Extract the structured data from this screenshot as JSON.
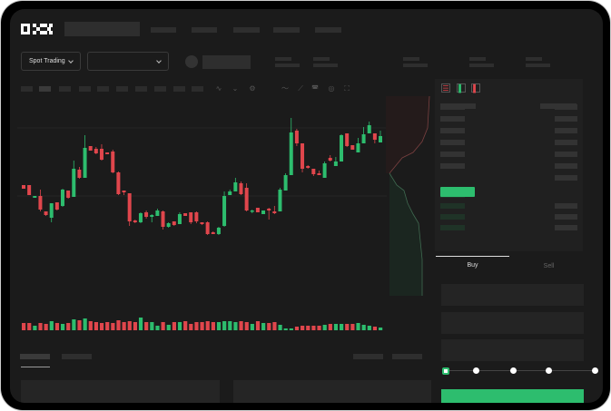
{
  "brand": {
    "logo": "OKX"
  },
  "toolbar": {
    "market_type": "Spot Trading",
    "pair": ""
  },
  "trade_form": {
    "tabs": [
      {
        "label": "Buy",
        "active": true
      },
      {
        "label": "Sell",
        "active": false
      }
    ],
    "leverage_steps": 5,
    "selected_step": 0
  },
  "colors": {
    "up": "#2dbd6e",
    "down": "#e0464c",
    "background": "#1b1b1b"
  },
  "chart_data": {
    "type": "candlestick",
    "title": "",
    "xlabel": "",
    "ylabel": "",
    "grid": true,
    "candles_ohlc": [
      [
        97,
        97,
        93,
        93
      ],
      [
        97,
        97,
        86,
        86
      ],
      [
        83,
        85,
        83,
        85
      ],
      [
        85,
        92,
        68,
        70
      ],
      [
        68,
        68,
        63,
        64
      ],
      [
        61,
        77,
        56,
        77
      ],
      [
        78,
        78,
        69,
        70
      ],
      [
        74,
        93,
        73,
        92
      ],
      [
        91,
        91,
        82,
        83
      ],
      [
        84,
        124,
        84,
        115
      ],
      [
        114,
        117,
        104,
        105
      ],
      [
        105,
        152,
        105,
        138
      ],
      [
        140,
        140,
        135,
        135
      ],
      [
        137,
        139,
        131,
        132
      ],
      [
        137,
        142,
        124,
        125
      ],
      [
        133,
        133,
        131,
        131
      ],
      [
        134,
        136,
        110,
        111
      ],
      [
        111,
        112,
        86,
        87
      ],
      [
        91,
        91,
        86,
        89
      ],
      [
        88,
        88,
        52,
        57
      ],
      [
        58,
        59,
        55,
        56
      ],
      [
        56,
        67,
        55,
        66
      ],
      [
        67,
        69,
        60,
        62
      ],
      [
        62,
        65,
        56,
        64
      ],
      [
        63,
        71,
        63,
        69
      ],
      [
        68,
        69,
        48,
        51
      ],
      [
        51,
        56,
        50,
        55
      ],
      [
        57,
        57,
        52,
        53
      ],
      [
        54,
        67,
        54,
        65
      ],
      [
        66,
        66,
        63,
        63
      ],
      [
        67,
        67,
        54,
        56
      ],
      [
        67,
        68,
        55,
        57
      ],
      [
        56,
        56,
        53,
        54
      ],
      [
        56,
        57,
        42,
        43
      ],
      [
        45,
        46,
        43,
        43
      ],
      [
        43,
        51,
        42,
        50
      ],
      [
        52,
        90,
        51,
        85
      ],
      [
        86,
        92,
        86,
        90
      ],
      [
        90,
        105,
        90,
        100
      ],
      [
        99,
        101,
        86,
        87
      ],
      [
        94,
        99,
        68,
        69
      ],
      [
        68,
        70,
        66,
        69
      ],
      [
        72,
        72,
        67,
        67
      ],
      [
        65,
        69,
        65,
        69
      ],
      [
        71,
        72,
        59,
        69
      ],
      [
        68,
        74,
        65,
        66
      ],
      [
        68,
        94,
        68,
        92
      ],
      [
        91,
        110,
        91,
        108
      ],
      [
        108,
        171,
        108,
        155
      ],
      [
        157,
        159,
        140,
        143
      ],
      [
        143,
        143,
        111,
        115
      ],
      [
        118,
        119,
        115,
        116
      ],
      [
        115,
        115,
        107,
        109
      ],
      [
        110,
        113,
        108,
        108
      ],
      [
        105,
        123,
        105,
        121
      ],
      [
        127,
        130,
        123,
        124
      ],
      [
        118,
        128,
        118,
        123
      ],
      [
        123,
        153,
        123,
        152
      ],
      [
        154,
        154,
        139,
        140
      ],
      [
        141,
        141,
        136,
        136
      ],
      [
        133,
        149,
        133,
        143
      ],
      [
        143,
        161,
        143,
        153
      ],
      [
        154,
        167,
        154,
        163
      ],
      [
        154,
        154,
        143,
        147
      ],
      [
        144,
        157,
        144,
        151
      ]
    ],
    "volume": [
      8,
      8,
      5,
      8,
      7,
      10,
      8,
      7,
      8,
      12,
      11,
      13,
      10,
      9,
      8,
      9,
      8,
      11,
      9,
      10,
      9,
      14,
      9,
      9,
      5,
      9,
      6,
      9,
      9,
      10,
      7,
      9,
      9,
      10,
      9,
      9,
      10,
      10,
      9,
      10,
      9,
      7,
      10,
      8,
      8,
      9,
      6,
      2,
      2,
      4,
      5,
      5,
      5,
      5,
      6,
      7,
      7,
      7,
      7,
      7,
      8,
      6,
      5,
      4,
      3
    ]
  }
}
